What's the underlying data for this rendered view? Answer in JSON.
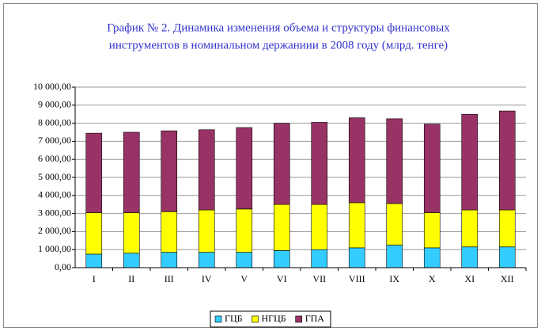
{
  "chart_data": {
    "type": "stacked_bar",
    "title": [
      "График № 2. Динамика изменения объема и структуры финансовых",
      "инструментов в номинальном держаниии в 2008 году (млрд. тенге)"
    ],
    "categories": [
      "I",
      "II",
      "III",
      "IV",
      "V",
      "VI",
      "VII",
      "VIII",
      "IX",
      "X",
      "XI",
      "XII"
    ],
    "series": [
      {
        "name": "ГЦБ",
        "color": "#33ccff",
        "values": [
          750,
          800,
          850,
          850,
          850,
          950,
          1000,
          1100,
          1250,
          1100,
          1150,
          1150
        ]
      },
      {
        "name": "НГЦБ",
        "color": "#ffff00",
        "values": [
          2300,
          2250,
          2250,
          2350,
          2400,
          2550,
          2500,
          2500,
          2300,
          1950,
          2050,
          2050
        ]
      },
      {
        "name": "ГПА",
        "color": "#993366",
        "values": [
          4400,
          4450,
          4480,
          4440,
          4510,
          4500,
          4550,
          4700,
          4700,
          4900,
          5300,
          5480
        ]
      }
    ],
    "ylim": [
      0,
      10000
    ],
    "yticks": [
      {
        "value": 0,
        "label": "0,00"
      },
      {
        "value": 1000,
        "label": "1 000,00"
      },
      {
        "value": 2000,
        "label": "2 000,00"
      },
      {
        "value": 3000,
        "label": "3 000,00"
      },
      {
        "value": 4000,
        "label": "4 000,00"
      },
      {
        "value": 5000,
        "label": "5 000,00"
      },
      {
        "value": 6000,
        "label": "6 000,00"
      },
      {
        "value": 7000,
        "label": "7 000,00"
      },
      {
        "value": 8000,
        "label": "8 000,00"
      },
      {
        "value": 9000,
        "label": "9 000,00"
      },
      {
        "value": 10000,
        "label": "10 000,00"
      }
    ],
    "grid": true,
    "legend": "bottom"
  }
}
